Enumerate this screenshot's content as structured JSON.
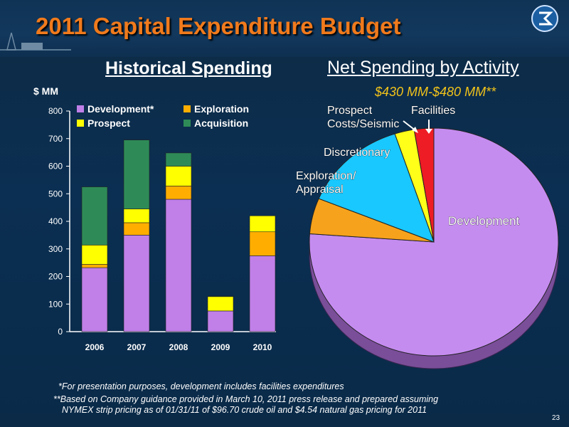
{
  "slide": {
    "title": "2011 Capital Expenditure Budget",
    "left_heading": "Historical Spending",
    "right_heading": "Net Spending by Activity",
    "right_range": "$430 MM-$480 MM**",
    "page_number": "23"
  },
  "footnotes": {
    "line1": "*For presentation purposes, development includes facilities expenditures",
    "line2": "**Based on Company guidance provided in March 10, 2011 press release and prepared assuming",
    "line3": "NYMEX strip pricing as of 01/31/11 of $96.70 crude oil and $4.54 natural gas pricing for 2011"
  },
  "chart_data": [
    {
      "type": "bar",
      "stacked": true,
      "title": "Historical Spending",
      "ylabel": "$ MM",
      "ylim": [
        0,
        800
      ],
      "yticks": [
        0,
        100,
        200,
        300,
        400,
        500,
        600,
        700,
        800
      ],
      "categories": [
        "2006",
        "2007",
        "2008",
        "2009",
        "2010"
      ],
      "series": [
        {
          "name": "Development*",
          "color": "#c080e8",
          "values": [
            232,
            350,
            480,
            75,
            275
          ]
        },
        {
          "name": "Exploration",
          "color": "#ffae00",
          "values": [
            12,
            45,
            48,
            0,
            87
          ]
        },
        {
          "name": "Prospect",
          "color": "#ffff00",
          "values": [
            70,
            50,
            72,
            52,
            58
          ]
        },
        {
          "name": "Acquisition",
          "color": "#2e8b57",
          "values": [
            211,
            250,
            48,
            2,
            0
          ]
        }
      ],
      "legend": "top"
    },
    {
      "type": "pie",
      "title": "Net Spending by Activity",
      "slices": [
        {
          "label": "Development",
          "value": 75,
          "color": "#c58cf0"
        },
        {
          "label": "Exploration/\nAppraisal",
          "value": 5,
          "color": "#f7a21c"
        },
        {
          "label": "Discretionary",
          "value": 13.5,
          "color": "#19c8ff"
        },
        {
          "label": "Prospect\nCosts/Seismic",
          "value": 2.5,
          "color": "#ffff1a"
        },
        {
          "label": "Facilities",
          "value": 2.5,
          "color": "#ee1c24"
        }
      ]
    }
  ]
}
